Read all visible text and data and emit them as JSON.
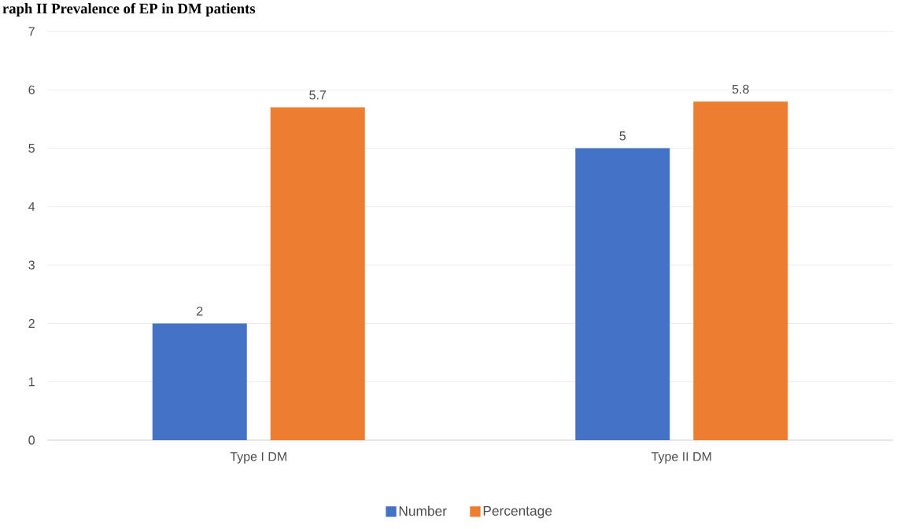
{
  "chart_data": {
    "type": "bar",
    "title": "raph II Prevalence of EP in DM patients",
    "categories": [
      "Type I DM",
      "Type II DM"
    ],
    "series": [
      {
        "name": "Number",
        "color": "#4472c4",
        "values": [
          2,
          5
        ]
      },
      {
        "name": "Percentage",
        "color": "#ed7d31",
        "values": [
          5.7,
          5.8
        ]
      }
    ],
    "ylim": [
      0,
      7
    ],
    "yticks": [
      0,
      1,
      2,
      3,
      4,
      5,
      6,
      7
    ],
    "grid": "y",
    "legend": "bottom",
    "data_labels": true
  }
}
